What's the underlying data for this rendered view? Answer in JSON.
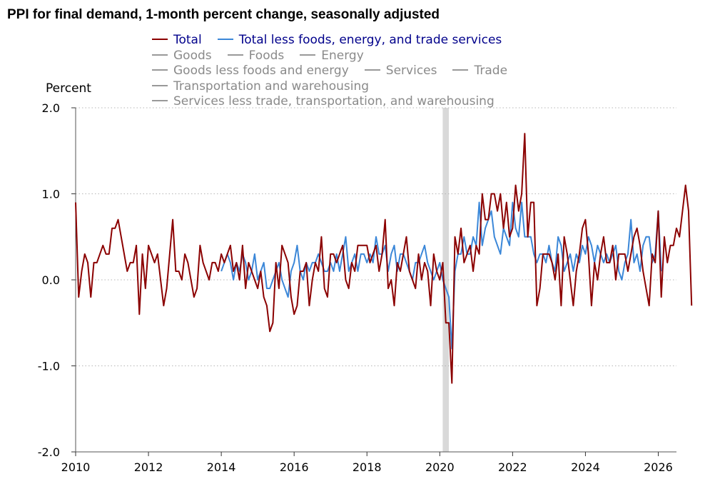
{
  "title": "PPI for final demand, 1-month percent change, seasonally adjusted",
  "legend": {
    "rows": [
      [
        {
          "label": "Total",
          "color": "#8b0000",
          "active": true
        },
        {
          "label": "Total less foods, energy, and trade services",
          "color": "#3b87d8",
          "active": true
        }
      ],
      [
        {
          "label": "Goods",
          "color": "#999999",
          "active": false
        },
        {
          "label": "Foods",
          "color": "#999999",
          "active": false
        },
        {
          "label": "Energy",
          "color": "#999999",
          "active": false
        }
      ],
      [
        {
          "label": "Goods less foods and energy",
          "color": "#999999",
          "active": false
        },
        {
          "label": "Services",
          "color": "#999999",
          "active": false
        },
        {
          "label": "Trade",
          "color": "#999999",
          "active": false
        }
      ],
      [
        {
          "label": "Transportation and warehousing",
          "color": "#999999",
          "active": false
        }
      ],
      [
        {
          "label": "Services less trade, transportation, and warehousing",
          "color": "#999999",
          "active": false
        }
      ]
    ]
  },
  "chart_data": {
    "type": "line",
    "title": "PPI for final demand, 1-month percent change, seasonally adjusted",
    "ylabel": "Percent",
    "xlabel": "",
    "ylim": [
      -2.0,
      2.0
    ],
    "yticks": [
      "2.0",
      "1.0",
      "0.0",
      "-1.0",
      "-2.0"
    ],
    "ytick_values": [
      2.0,
      1.0,
      0.0,
      -1.0,
      -2.0
    ],
    "xlim": [
      2010.0,
      2026.5
    ],
    "xticks": [
      "2010",
      "2012",
      "2014",
      "2016",
      "2018",
      "2020",
      "2022",
      "2024",
      "2026"
    ],
    "xtick_values": [
      2010,
      2012,
      2014,
      2016,
      2018,
      2020,
      2022,
      2024,
      2026
    ],
    "grid": "horizontal dotted",
    "recession_shading": [
      [
        2020.08,
        2020.25
      ]
    ],
    "series": [
      {
        "name": "Total",
        "color": "#8b0000",
        "start": 2010.0,
        "step": 0.08333,
        "values": [
          0.9,
          -0.2,
          0.1,
          0.3,
          0.2,
          -0.2,
          0.2,
          0.2,
          0.3,
          0.4,
          0.3,
          0.3,
          0.6,
          0.6,
          0.7,
          0.5,
          0.3,
          0.1,
          0.2,
          0.2,
          0.4,
          -0.4,
          0.3,
          -0.1,
          0.4,
          0.3,
          0.2,
          0.3,
          0.0,
          -0.3,
          -0.1,
          0.3,
          0.7,
          0.1,
          0.1,
          0.0,
          0.3,
          0.2,
          0.0,
          -0.2,
          -0.1,
          0.4,
          0.2,
          0.1,
          0.0,
          0.2,
          0.2,
          0.1,
          0.3,
          0.2,
          0.3,
          0.4,
          0.1,
          0.2,
          0.0,
          0.4,
          -0.1,
          0.2,
          0.1,
          0.0,
          -0.1,
          0.1,
          -0.2,
          -0.3,
          -0.6,
          -0.5,
          0.2,
          -0.1,
          0.4,
          0.3,
          0.2,
          -0.2,
          -0.4,
          -0.3,
          0.1,
          0.1,
          0.2,
          -0.3,
          0.0,
          0.2,
          0.1,
          0.5,
          -0.1,
          -0.2,
          0.3,
          0.3,
          0.2,
          0.3,
          0.4,
          0.0,
          -0.1,
          0.2,
          0.1,
          0.4,
          0.4,
          0.4,
          0.4,
          0.2,
          0.3,
          0.4,
          0.1,
          0.3,
          0.7,
          -0.1,
          0.0,
          -0.3,
          0.2,
          0.1,
          0.3,
          0.5,
          0.1,
          0.0,
          -0.1,
          0.3,
          0.0,
          0.2,
          0.1,
          -0.3,
          0.3,
          0.1,
          0.0,
          0.2,
          -0.5,
          -0.5,
          -1.2,
          0.5,
          0.3,
          0.6,
          0.2,
          0.3,
          0.4,
          0.1,
          0.4,
          0.3,
          1.0,
          0.7,
          0.7,
          1.0,
          1.0,
          0.8,
          1.0,
          0.6,
          0.9,
          0.5,
          0.6,
          1.1,
          0.8,
          1.0,
          1.7,
          0.5,
          0.9,
          0.9,
          -0.3,
          -0.1,
          0.3,
          0.3,
          0.3,
          0.2,
          0.0,
          0.3,
          -0.3,
          0.5,
          0.3,
          0.0,
          -0.3,
          0.1,
          0.3,
          0.6,
          0.7,
          0.3,
          -0.3,
          0.2,
          0.0,
          0.3,
          0.5,
          0.2,
          0.2,
          0.4,
          0.0,
          0.3,
          0.3,
          0.3,
          0.1,
          0.3,
          0.5,
          0.6,
          0.4,
          0.1,
          -0.1,
          -0.3,
          0.3,
          0.2,
          0.8,
          -0.2,
          0.5,
          0.2,
          0.4,
          0.4,
          0.6,
          0.5,
          0.8,
          1.1,
          0.8,
          -0.3
        ]
      },
      {
        "name": "Total less foods, energy, and trade services",
        "color": "#3b87d8",
        "start": 2014.0,
        "step": 0.08333,
        "values": [
          0.1,
          0.2,
          0.3,
          0.2,
          0.0,
          0.2,
          0.1,
          0.3,
          0.2,
          0.0,
          0.1,
          0.3,
          0.0,
          0.1,
          0.2,
          -0.1,
          -0.1,
          0.0,
          0.1,
          0.2,
          0.0,
          -0.1,
          -0.2,
          0.1,
          0.2,
          0.4,
          0.1,
          0.0,
          0.2,
          0.1,
          0.2,
          0.2,
          0.3,
          0.2,
          0.1,
          0.1,
          0.2,
          0.1,
          0.3,
          0.1,
          0.3,
          0.5,
          0.1,
          0.2,
          0.3,
          0.1,
          0.3,
          0.3,
          0.2,
          0.3,
          0.2,
          0.5,
          0.3,
          0.3,
          0.4,
          0.1,
          0.3,
          0.4,
          0.1,
          0.3,
          0.3,
          0.2,
          0.1,
          0.0,
          0.2,
          0.2,
          0.3,
          0.4,
          0.2,
          0.1,
          0.0,
          0.1,
          0.2,
          0.0,
          -0.1,
          -0.2,
          -0.8,
          0.1,
          0.3,
          0.3,
          0.5,
          0.3,
          0.3,
          0.5,
          0.4,
          0.9,
          0.4,
          0.6,
          0.7,
          0.8,
          0.5,
          0.4,
          0.3,
          0.6,
          0.5,
          0.4,
          0.9,
          0.6,
          0.5,
          0.9,
          0.5,
          0.5,
          0.5,
          0.3,
          0.2,
          0.3,
          0.3,
          0.2,
          0.4,
          0.2,
          0.1,
          0.5,
          0.4,
          0.1,
          0.2,
          0.3,
          0.1,
          0.3,
          0.2,
          0.4,
          0.3,
          0.5,
          0.4,
          0.2,
          0.4,
          0.3,
          0.2,
          0.3,
          0.2,
          0.3,
          0.4,
          0.1,
          0.0,
          0.2,
          0.3,
          0.7,
          0.2,
          0.3,
          0.1,
          0.4,
          0.5,
          0.5,
          0.2,
          0.3,
          0.8,
          0.1
        ]
      }
    ]
  }
}
